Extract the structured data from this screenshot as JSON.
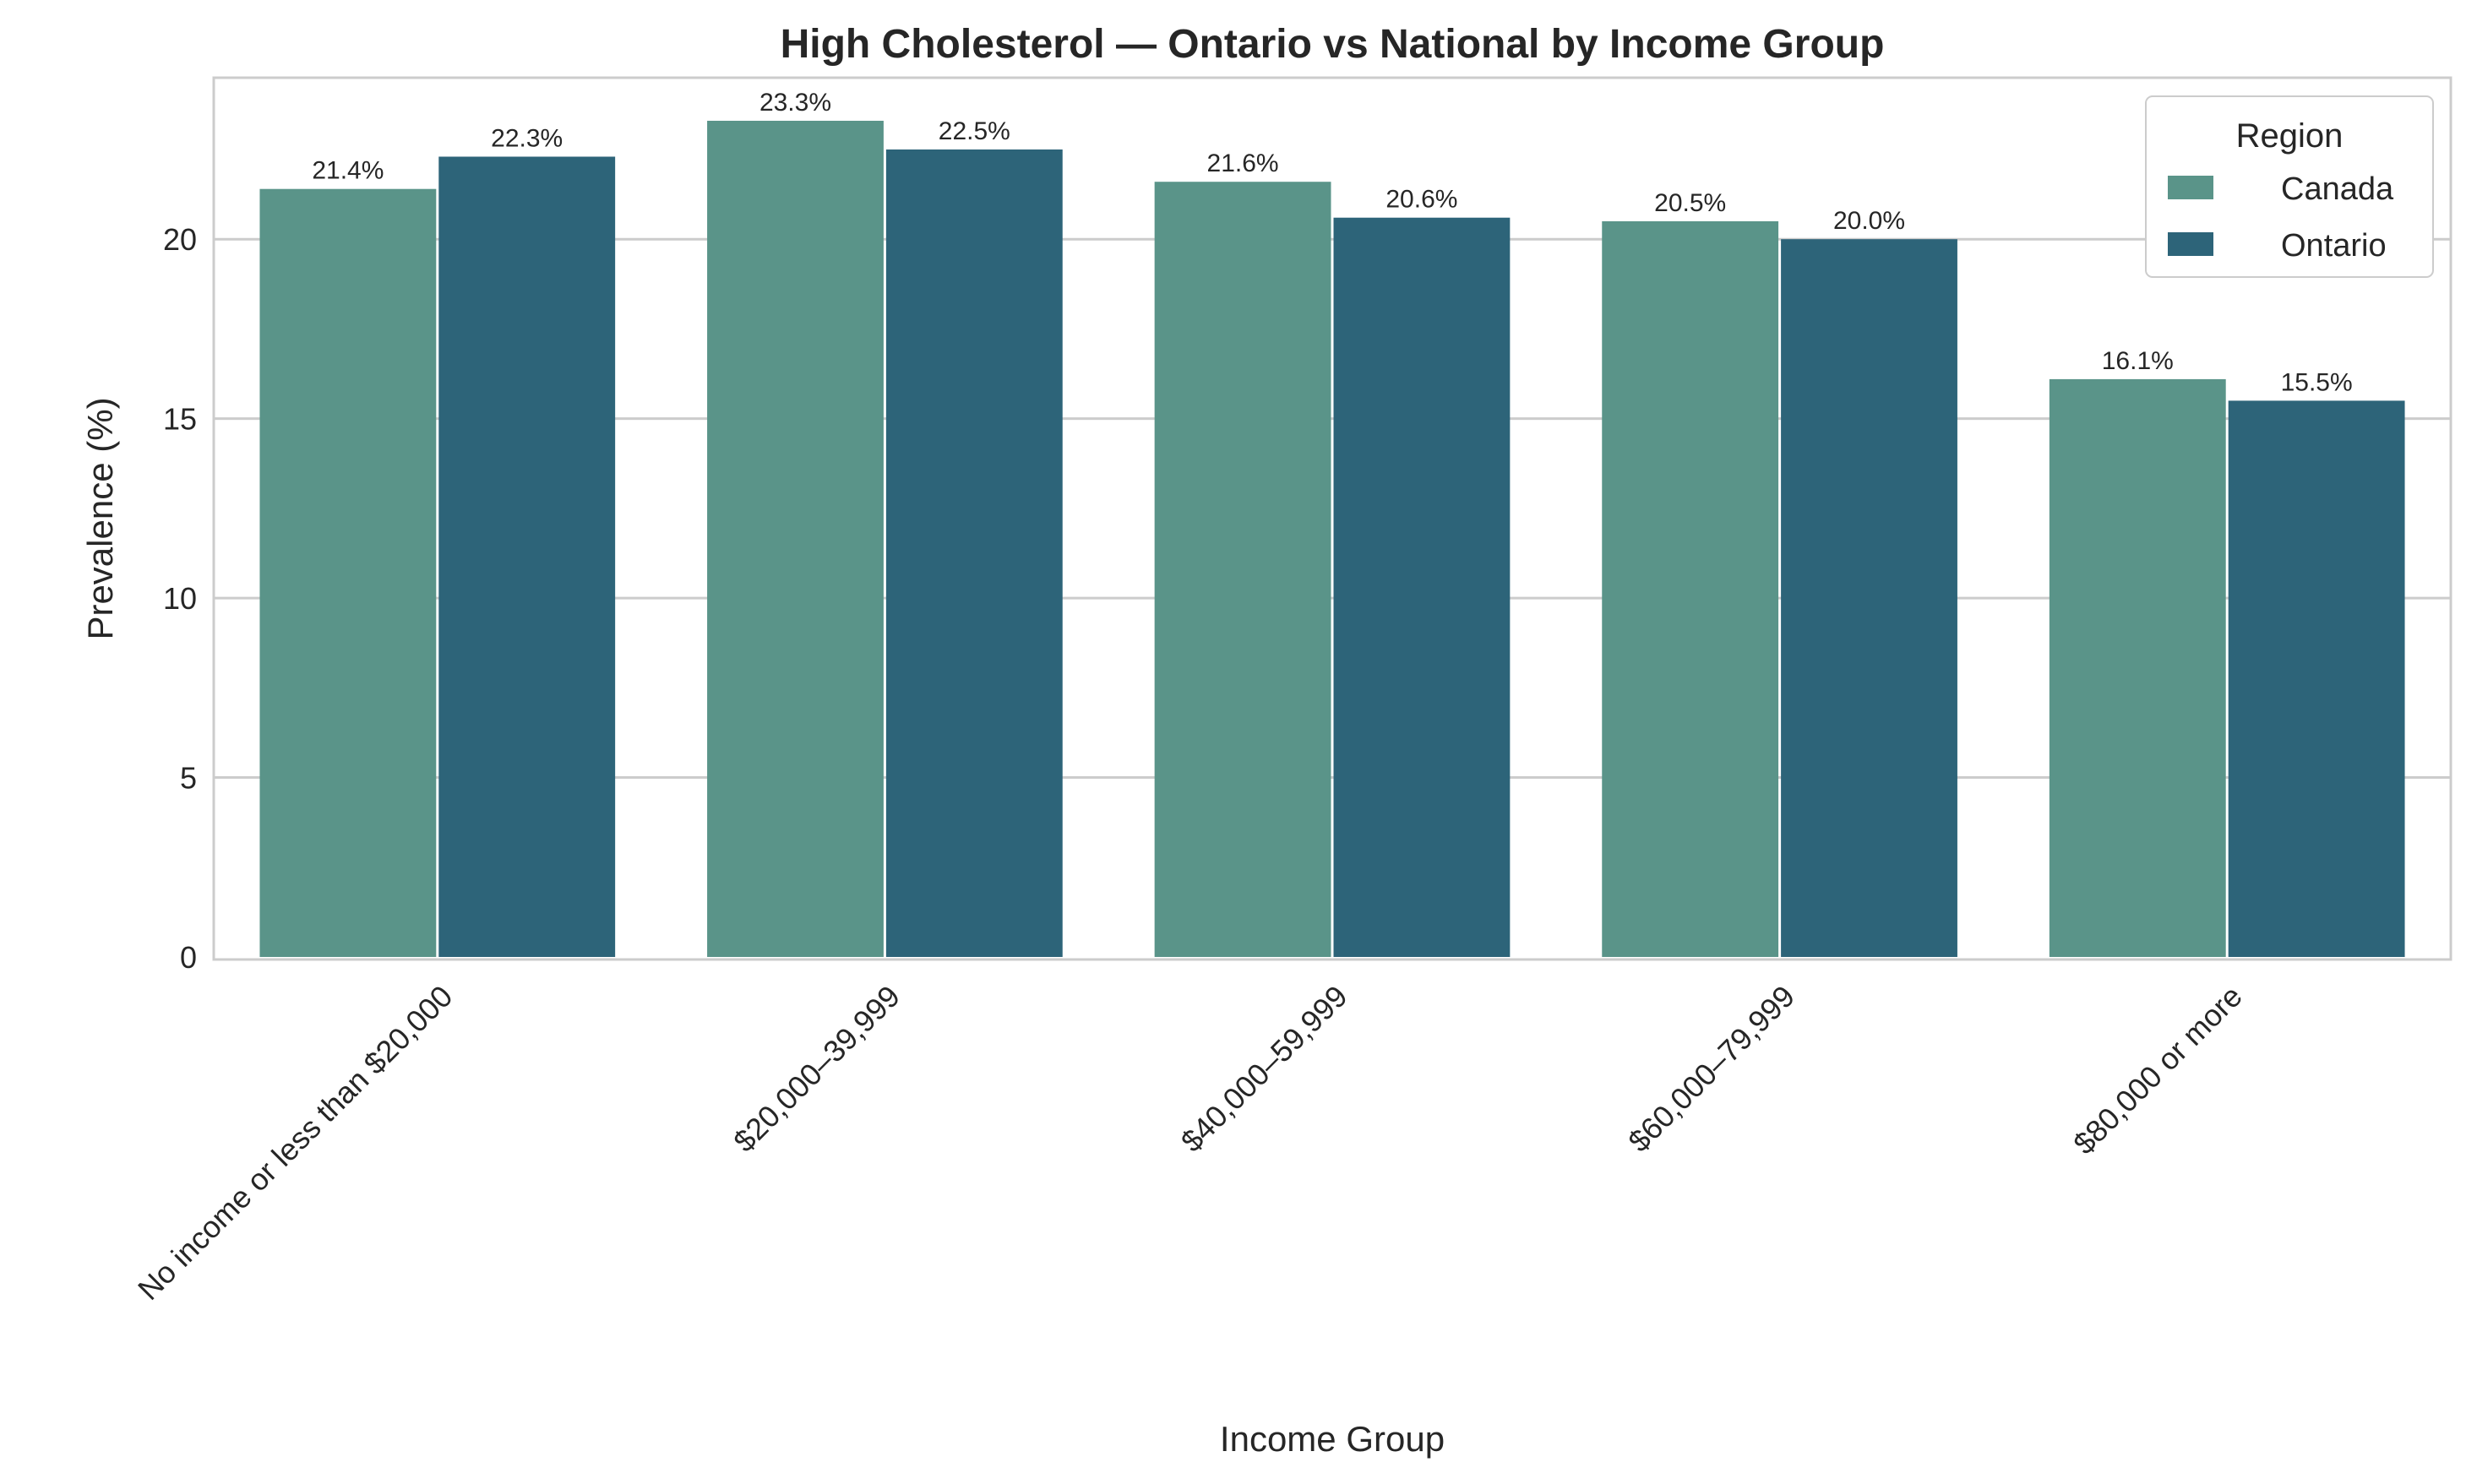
{
  "chart_data": {
    "type": "bar",
    "title": "High Cholesterol — Ontario vs National by Income Group",
    "xlabel": "Income Group",
    "ylabel": "Prevalence (%)",
    "categories": [
      "No income or less than $20,000",
      "$20,000–39,999",
      "$40,000–59,999",
      "$60,000–79,999",
      "$80,000 or more"
    ],
    "series": [
      {
        "name": "Canada",
        "values": [
          21.4,
          23.3,
          21.6,
          20.5,
          16.1
        ],
        "labels": [
          "21.4%",
          "23.3%",
          "21.6%",
          "20.5%",
          "16.1%"
        ],
        "color": "#5a9489"
      },
      {
        "name": "Ontario",
        "values": [
          22.3,
          22.5,
          20.6,
          20.0,
          15.5
        ],
        "labels": [
          "22.3%",
          "22.5%",
          "20.6%",
          "20.0%",
          "15.5%"
        ],
        "color": "#2d6479"
      }
    ],
    "ylim": [
      0,
      24.5
    ],
    "yticks": [
      0,
      5,
      10,
      15,
      20
    ],
    "ytick_labels": [
      "0",
      "5",
      "10",
      "15",
      "20"
    ],
    "grid": "horizontal",
    "legend": {
      "title": "Region",
      "placement": "top-right"
    }
  }
}
